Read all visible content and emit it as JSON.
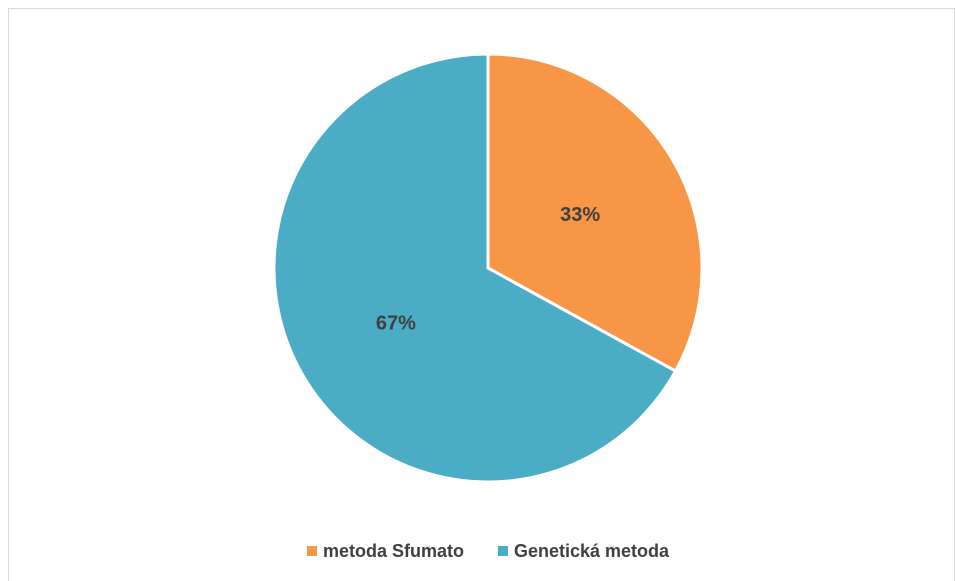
{
  "chart_data": {
    "type": "pie",
    "categories": [
      "metoda Sfumato",
      "Genetická metoda"
    ],
    "values": [
      33,
      67
    ],
    "value_labels": [
      "33%",
      "67%"
    ],
    "colors": [
      "#f79646",
      "#4bacc6"
    ]
  }
}
